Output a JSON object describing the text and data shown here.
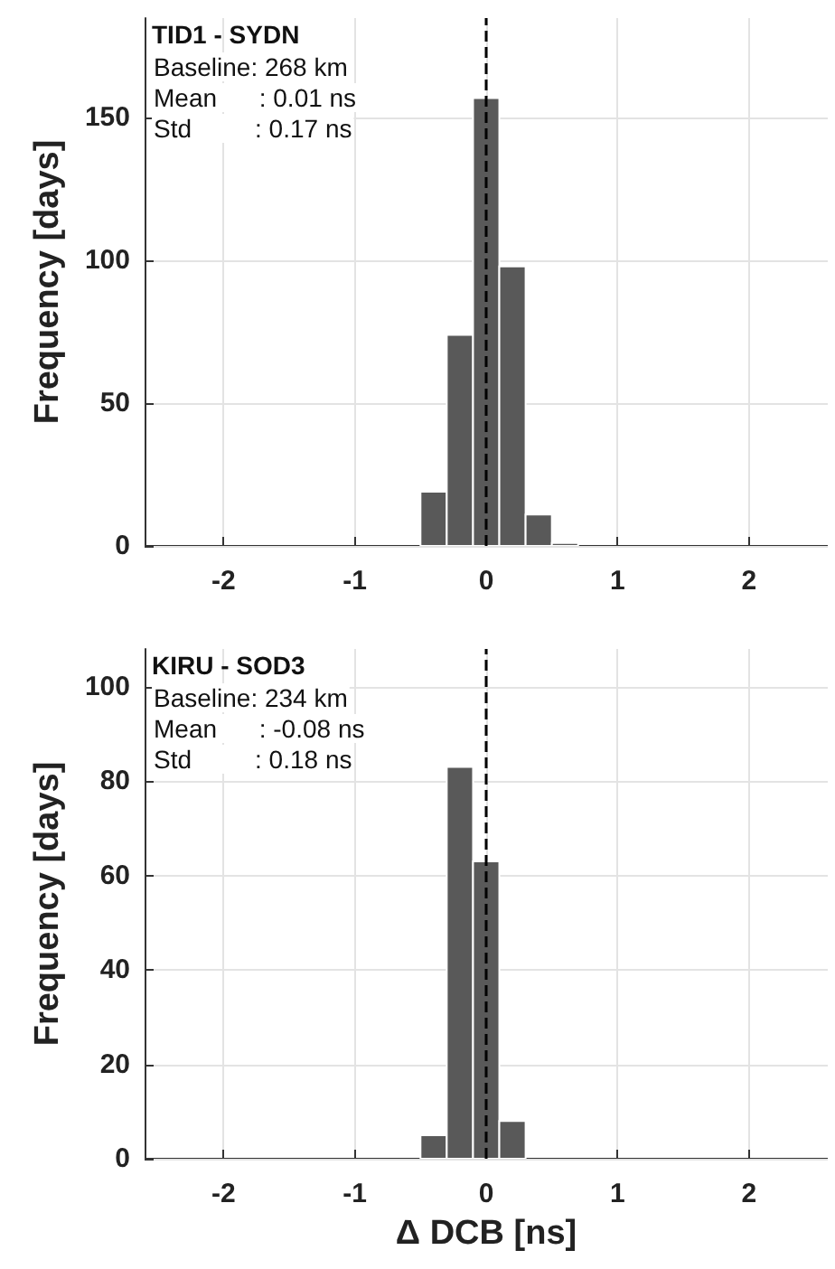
{
  "chart_data": [
    {
      "type": "histogram",
      "title": "TID1 - SYDN",
      "ylabel": "Frequency [days]",
      "annotations": [
        "Baseline: 268 km",
        "Mean      : 0.01 ns",
        "Std         : 0.17 ns"
      ],
      "bins": [
        -0.5,
        -0.3,
        -0.1,
        0.1,
        0.3,
        0.5,
        0.7
      ],
      "values": [
        19,
        74,
        157,
        98,
        11,
        1
      ],
      "color": "#595959",
      "xlim": [
        -2.6,
        2.6
      ],
      "xticks": [
        -2,
        -1,
        0,
        1,
        2
      ],
      "ylim": [
        0,
        185
      ],
      "yticks": [
        0,
        50,
        100,
        150
      ],
      "ref_lines": [
        {
          "axis": "x",
          "value": 0,
          "color": "#000000",
          "line_style": "dashed"
        }
      ],
      "grid": true
    },
    {
      "type": "histogram",
      "title": "KIRU - SOD3",
      "xlabel": "Δ DCB [ns]",
      "ylabel": "Frequency [days]",
      "annotations": [
        "Baseline: 234 km",
        "Mean      : -0.08 ns",
        "Std         : 0.18 ns"
      ],
      "bins": [
        -0.5,
        -0.3,
        -0.1,
        0.1,
        0.3
      ],
      "values": [
        5,
        83,
        63,
        8
      ],
      "color": "#595959",
      "xlim": [
        -2.6,
        2.6
      ],
      "xticks": [
        -2,
        -1,
        0,
        1,
        2
      ],
      "ylim": [
        0,
        108
      ],
      "yticks": [
        0,
        20,
        40,
        60,
        80,
        100
      ],
      "ref_lines": [
        {
          "axis": "x",
          "value": 0,
          "color": "#000000",
          "line_style": "dashed"
        }
      ],
      "grid": true
    }
  ]
}
